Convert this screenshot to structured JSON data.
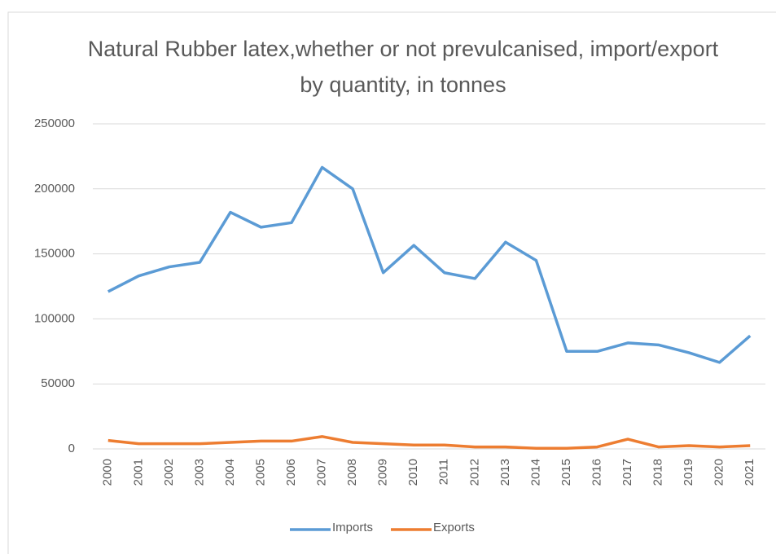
{
  "chart_data": {
    "type": "line",
    "title": "Natural Rubber latex,whether or not prevulcanised, import/export by quantity, in tonnes",
    "categories": [
      "2000",
      "2001",
      "2002",
      "2003",
      "2004",
      "2005",
      "2006",
      "2007",
      "2008",
      "2009",
      "2010",
      "2011",
      "2012",
      "2013",
      "2014",
      "2015",
      "2016",
      "2017",
      "2018",
      "2019",
      "2020",
      "2021"
    ],
    "series": [
      {
        "name": "Imports",
        "color": "#5b9bd5",
        "values": [
          121000,
          133000,
          140000,
          143500,
          182000,
          170500,
          174000,
          216500,
          200000,
          135500,
          156500,
          135500,
          131000,
          159000,
          145000,
          75000,
          75000,
          81500,
          80000,
          74000,
          66500,
          87000
        ]
      },
      {
        "name": "Exports",
        "color": "#ed7d31",
        "values": [
          6500,
          4000,
          4000,
          4000,
          5000,
          6000,
          6000,
          9500,
          5000,
          4000,
          3000,
          3000,
          1500,
          1500,
          500,
          500,
          1500,
          7500,
          1500,
          2500,
          1500,
          2500
        ]
      }
    ],
    "ylim": [
      0,
      250000
    ],
    "yticks": [
      0,
      50000,
      100000,
      150000,
      200000,
      250000
    ],
    "grid": true,
    "legend": "bottom"
  }
}
